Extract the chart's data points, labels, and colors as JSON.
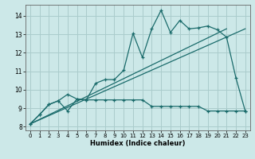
{
  "xlabel": "Humidex (Indice chaleur)",
  "bg_color": "#cce8e8",
  "grid_color": "#aacccc",
  "line_color": "#1a6b6b",
  "xlim": [
    -0.5,
    23.5
  ],
  "ylim": [
    7.8,
    14.6
  ],
  "yticks": [
    8,
    9,
    10,
    11,
    12,
    13,
    14
  ],
  "xticks": [
    0,
    1,
    2,
    3,
    4,
    5,
    6,
    7,
    8,
    9,
    10,
    11,
    12,
    13,
    14,
    15,
    16,
    17,
    18,
    19,
    20,
    21,
    22,
    23
  ],
  "line1_x": [
    0,
    1,
    2,
    3,
    4,
    5,
    6,
    7,
    8,
    9,
    10,
    11,
    12,
    13,
    14,
    15,
    16,
    17,
    18,
    19,
    20,
    21,
    22,
    23
  ],
  "line1_y": [
    8.15,
    8.65,
    9.2,
    9.4,
    8.85,
    9.5,
    9.45,
    10.35,
    10.55,
    10.55,
    11.05,
    13.05,
    11.75,
    13.3,
    14.3,
    13.1,
    13.75,
    13.3,
    13.35,
    13.45,
    13.25,
    12.85,
    10.65,
    8.85
  ],
  "line2_x": [
    0,
    1,
    2,
    3,
    4,
    5,
    6,
    7,
    8,
    9,
    10,
    11,
    12,
    13,
    14,
    15,
    16,
    17,
    18,
    19,
    20,
    21,
    22,
    23
  ],
  "line2_y": [
    8.15,
    8.65,
    9.2,
    9.4,
    9.75,
    9.5,
    9.45,
    9.45,
    9.45,
    9.45,
    9.45,
    9.45,
    9.45,
    9.1,
    9.1,
    9.1,
    9.1,
    9.1,
    9.1,
    8.85,
    8.85,
    8.85,
    8.85,
    8.85
  ],
  "line3_x": [
    0,
    21
  ],
  "line3_y": [
    8.15,
    13.3
  ],
  "line4_x": [
    0,
    23
  ],
  "line4_y": [
    8.15,
    13.3
  ]
}
